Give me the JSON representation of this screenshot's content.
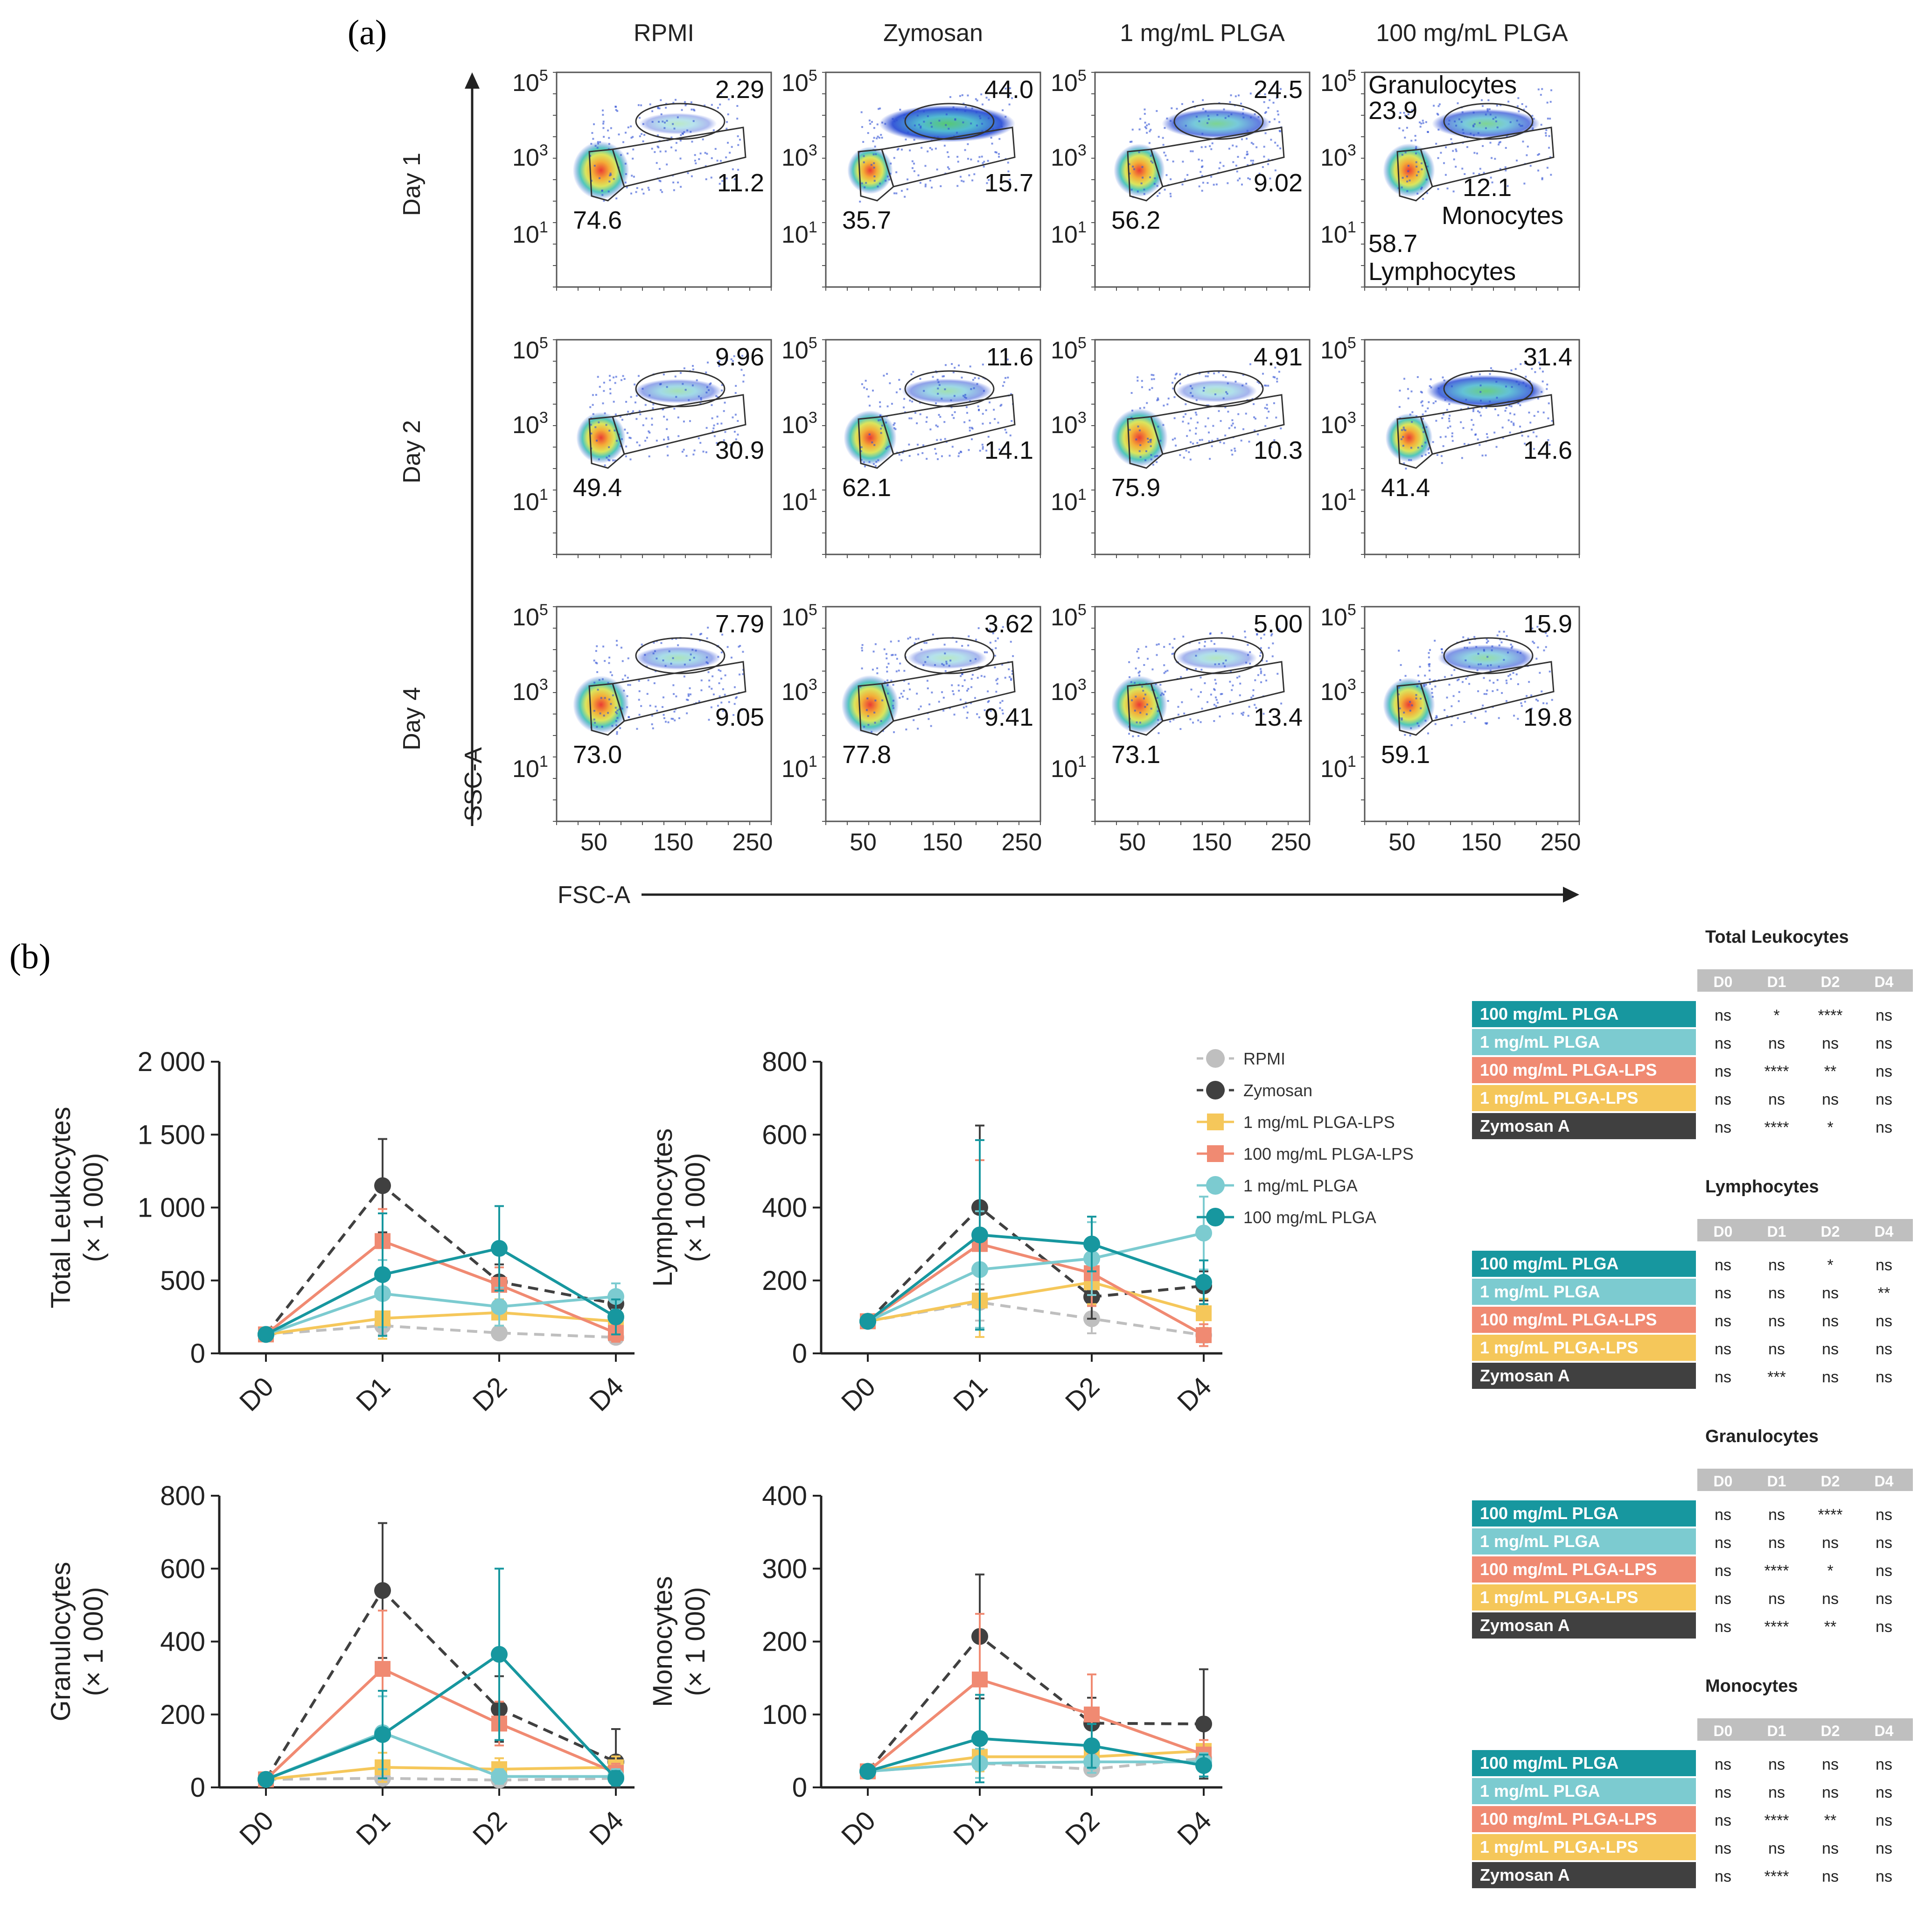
{
  "panel_a": {
    "label": "(a)",
    "columns": [
      "RPMI",
      "Zymosan",
      "1 mg/mL PLGA",
      "100 mg/mL PLGA"
    ],
    "rows": [
      "Day 1",
      "Day 2",
      "Day 4"
    ],
    "x_axis_label": "FSC-A",
    "y_axis_label": "SSC-A",
    "x_ticks": [
      "50",
      "150",
      "250"
    ],
    "y_ticks": [
      {
        "base": "10",
        "exp": "5"
      },
      {
        "base": "10",
        "exp": "3"
      },
      {
        "base": "10",
        "exp": "1"
      }
    ],
    "gate_names": {
      "granulocytes": "Granulocytes",
      "monocytes": "Monocytes",
      "lymphocytes": "Lymphocytes"
    },
    "gate_values": [
      [
        {
          "gran": "2.29",
          "mono": "11.2",
          "lymph": "74.6"
        },
        {
          "gran": "44.0",
          "mono": "15.7",
          "lymph": "35.7"
        },
        {
          "gran": "24.5",
          "mono": "9.02",
          "lymph": "56.2"
        },
        {
          "gran": "23.9",
          "mono": "12.1",
          "lymph": "58.7"
        }
      ],
      [
        {
          "gran": "9.96",
          "mono": "30.9",
          "lymph": "49.4"
        },
        {
          "gran": "11.6",
          "mono": "14.1",
          "lymph": "62.1"
        },
        {
          "gran": "4.91",
          "mono": "10.3",
          "lymph": "75.9"
        },
        {
          "gran": "31.4",
          "mono": "14.6",
          "lymph": "41.4"
        }
      ],
      [
        {
          "gran": "7.79",
          "mono": "9.05",
          "lymph": "73.0"
        },
        {
          "gran": "3.62",
          "mono": "9.41",
          "lymph": "77.8"
        },
        {
          "gran": "5.00",
          "mono": "13.4",
          "lymph": "73.1"
        },
        {
          "gran": "15.9",
          "mono": "19.8",
          "lymph": "59.1"
        }
      ]
    ]
  },
  "panel_b": {
    "label": "(b)",
    "legend": [
      {
        "name": "RPMI",
        "color": "#bfbfbf",
        "marker": "circle",
        "dash": "dashed"
      },
      {
        "name": "Zymosan",
        "color": "#404040",
        "marker": "circle",
        "dash": "dashed"
      },
      {
        "name": "1 mg/mL PLGA-LPS",
        "color": "#f5c75a",
        "marker": "square",
        "dash": "solid"
      },
      {
        "name": "100 mg/mL PLGA-LPS",
        "color": "#f08a72",
        "marker": "square",
        "dash": "solid"
      },
      {
        "name": "1 mg/mL PLGA",
        "color": "#7ccbd0",
        "marker": "circle",
        "dash": "solid"
      },
      {
        "name": "100 mg/mL PLGA",
        "color": "#17979f",
        "marker": "circle",
        "dash": "solid"
      }
    ],
    "stat_tables": [
      {
        "title": "Total Leukocytes",
        "cols": [
          "D0",
          "D1",
          "D2",
          "D4"
        ],
        "rows": [
          {
            "label": "100 mg/mL PLGA",
            "color": "#17979f",
            "values": [
              "ns",
              "*",
              "****",
              "ns"
            ]
          },
          {
            "label": "1 mg/mL PLGA",
            "color": "#7ccbd0",
            "values": [
              "ns",
              "ns",
              "ns",
              "ns"
            ]
          },
          {
            "label": "100 mg/mL PLGA-LPS",
            "color": "#f08a72",
            "values": [
              "ns",
              "****",
              "**",
              "ns"
            ]
          },
          {
            "label": "1 mg/mL PLGA-LPS",
            "color": "#f5c75a",
            "values": [
              "ns",
              "ns",
              "ns",
              "ns"
            ]
          },
          {
            "label": "Zymosan A",
            "color": "#404040",
            "values": [
              "ns",
              "****",
              "*",
              "ns"
            ]
          }
        ]
      },
      {
        "title": "Lymphocytes",
        "cols": [
          "D0",
          "D1",
          "D2",
          "D4"
        ],
        "rows": [
          {
            "label": "100 mg/mL PLGA",
            "color": "#17979f",
            "values": [
              "ns",
              "ns",
              "*",
              "ns"
            ]
          },
          {
            "label": "1 mg/mL PLGA",
            "color": "#7ccbd0",
            "values": [
              "ns",
              "ns",
              "ns",
              "**"
            ]
          },
          {
            "label": "100 mg/mL PLGA-LPS",
            "color": "#f08a72",
            "values": [
              "ns",
              "ns",
              "ns",
              "ns"
            ]
          },
          {
            "label": "1 mg/mL PLGA-LPS",
            "color": "#f5c75a",
            "values": [
              "ns",
              "ns",
              "ns",
              "ns"
            ]
          },
          {
            "label": "Zymosan A",
            "color": "#404040",
            "values": [
              "ns",
              "***",
              "ns",
              "ns"
            ]
          }
        ]
      },
      {
        "title": "Granulocytes",
        "cols": [
          "D0",
          "D1",
          "D2",
          "D4"
        ],
        "rows": [
          {
            "label": "100 mg/mL PLGA",
            "color": "#17979f",
            "values": [
              "ns",
              "ns",
              "****",
              "ns"
            ]
          },
          {
            "label": "1 mg/mL PLGA",
            "color": "#7ccbd0",
            "values": [
              "ns",
              "ns",
              "ns",
              "ns"
            ]
          },
          {
            "label": "100 mg/mL PLGA-LPS",
            "color": "#f08a72",
            "values": [
              "ns",
              "****",
              "*",
              "ns"
            ]
          },
          {
            "label": "1 mg/mL PLGA-LPS",
            "color": "#f5c75a",
            "values": [
              "ns",
              "ns",
              "ns",
              "ns"
            ]
          },
          {
            "label": "Zymosan A",
            "color": "#404040",
            "values": [
              "ns",
              "****",
              "**",
              "ns"
            ]
          }
        ]
      },
      {
        "title": "Monocytes",
        "cols": [
          "D0",
          "D1",
          "D2",
          "D4"
        ],
        "rows": [
          {
            "label": "100 mg/mL PLGA",
            "color": "#17979f",
            "values": [
              "ns",
              "ns",
              "ns",
              "ns"
            ]
          },
          {
            "label": "1 mg/mL PLGA",
            "color": "#7ccbd0",
            "values": [
              "ns",
              "ns",
              "ns",
              "ns"
            ]
          },
          {
            "label": "100 mg/mL PLGA-LPS",
            "color": "#f08a72",
            "values": [
              "ns",
              "****",
              "**",
              "ns"
            ]
          },
          {
            "label": "1 mg/mL PLGA-LPS",
            "color": "#f5c75a",
            "values": [
              "ns",
              "ns",
              "ns",
              "ns"
            ]
          },
          {
            "label": "Zymosan A",
            "color": "#404040",
            "values": [
              "ns",
              "****",
              "ns",
              "ns"
            ]
          }
        ]
      }
    ]
  },
  "chart_data": [
    {
      "type": "line",
      "title": "",
      "ylabel": "Total Leukocytes",
      "ylabel_unit": "(× 1 000)",
      "categories": [
        "D0",
        "D1",
        "D2",
        "D4"
      ],
      "ylim": [
        0,
        2000
      ],
      "yticks": [
        0,
        500,
        1000,
        1500,
        2000
      ],
      "ytick_labels": [
        "0",
        "500",
        "1 000",
        "1 500",
        "2 000"
      ],
      "series": [
        {
          "name": "RPMI",
          "values": [
            130,
            190,
            140,
            110
          ],
          "err": [
            15,
            60,
            40,
            30
          ]
        },
        {
          "name": "Zymosan",
          "values": [
            130,
            1150,
            490,
            340
          ],
          "err": [
            15,
            320,
            120,
            90
          ]
        },
        {
          "name": "1 mg/mL PLGA-LPS",
          "values": [
            130,
            240,
            280,
            220
          ],
          "err": [
            15,
            140,
            90,
            70
          ]
        },
        {
          "name": "100 mg/mL PLGA-LPS",
          "values": [
            130,
            770,
            470,
            140
          ],
          "err": [
            15,
            220,
            120,
            60
          ]
        },
        {
          "name": "1 mg/mL PLGA",
          "values": [
            130,
            410,
            320,
            390
          ],
          "err": [
            15,
            230,
            130,
            90
          ]
        },
        {
          "name": "100 mg/mL PLGA",
          "values": [
            130,
            540,
            720,
            250
          ],
          "err": [
            15,
            420,
            290,
            120
          ]
        }
      ]
    },
    {
      "type": "line",
      "title": "",
      "ylabel": "Lymphocytes",
      "ylabel_unit": "(× 1 000)",
      "categories": [
        "D0",
        "D1",
        "D2",
        "D4"
      ],
      "ylim": [
        0,
        800
      ],
      "yticks": [
        0,
        200,
        400,
        600,
        800
      ],
      "ytick_labels": [
        "0",
        "200",
        "400",
        "600",
        "800"
      ],
      "series": [
        {
          "name": "RPMI",
          "values": [
            88,
            140,
            95,
            50
          ],
          "err": [
            8,
            50,
            40,
            20
          ]
        },
        {
          "name": "Zymosan",
          "values": [
            88,
            400,
            155,
            185
          ],
          "err": [
            8,
            225,
            60,
            40
          ]
        },
        {
          "name": "1 mg/mL PLGA-LPS",
          "values": [
            88,
            145,
            195,
            110
          ],
          "err": [
            8,
            100,
            60,
            40
          ]
        },
        {
          "name": "100 mg/mL PLGA-LPS",
          "values": [
            88,
            300,
            220,
            50
          ],
          "err": [
            8,
            230,
            90,
            30
          ]
        },
        {
          "name": "1 mg/mL PLGA",
          "values": [
            88,
            230,
            260,
            330
          ],
          "err": [
            8,
            160,
            100,
            100
          ]
        },
        {
          "name": "100 mg/mL PLGA",
          "values": [
            88,
            325,
            300,
            195
          ],
          "err": [
            8,
            260,
            75,
            60
          ]
        }
      ]
    },
    {
      "type": "line",
      "title": "",
      "ylabel": "Granulocytes",
      "ylabel_unit": "(× 1 000)",
      "categories": [
        "D0",
        "D1",
        "D2",
        "D4"
      ],
      "ylim": [
        0,
        800
      ],
      "yticks": [
        0,
        200,
        400,
        600,
        800
      ],
      "ytick_labels": [
        "0",
        "200",
        "400",
        "600",
        "800"
      ],
      "series": [
        {
          "name": "RPMI",
          "values": [
            22,
            25,
            20,
            25
          ],
          "err": [
            5,
            10,
            8,
            8
          ]
        },
        {
          "name": "Zymosan",
          "values": [
            22,
            540,
            215,
            70
          ],
          "err": [
            5,
            185,
            90,
            90
          ]
        },
        {
          "name": "1 mg/mL PLGA-LPS",
          "values": [
            22,
            55,
            50,
            55
          ],
          "err": [
            5,
            40,
            30,
            30
          ]
        },
        {
          "name": "100 mg/mL PLGA-LPS",
          "values": [
            22,
            325,
            175,
            40
          ],
          "err": [
            5,
            160,
            60,
            25
          ]
        },
        {
          "name": "1 mg/mL PLGA",
          "values": [
            22,
            150,
            30,
            30
          ],
          "err": [
            5,
            100,
            20,
            20
          ]
        },
        {
          "name": "100 mg/mL PLGA",
          "values": [
            22,
            145,
            365,
            25
          ],
          "err": [
            5,
            120,
            235,
            20
          ]
        }
      ]
    },
    {
      "type": "line",
      "title": "",
      "ylabel": "Monocytes",
      "ylabel_unit": "(× 1 000)",
      "categories": [
        "D0",
        "D1",
        "D2",
        "D4"
      ],
      "ylim": [
        0,
        400
      ],
      "yticks": [
        0,
        100,
        200,
        300,
        400
      ],
      "ytick_labels": [
        "0",
        "100",
        "200",
        "300",
        "400"
      ],
      "series": [
        {
          "name": "RPMI",
          "values": [
            22,
            33,
            25,
            40
          ],
          "err": [
            4,
            10,
            8,
            10
          ]
        },
        {
          "name": "Zymosan",
          "values": [
            22,
            207,
            88,
            87
          ],
          "err": [
            4,
            85,
            35,
            75
          ]
        },
        {
          "name": "1 mg/mL PLGA-LPS",
          "values": [
            22,
            42,
            42,
            50
          ],
          "err": [
            4,
            20,
            15,
            15
          ]
        },
        {
          "name": "100 mg/mL PLGA-LPS",
          "values": [
            22,
            148,
            100,
            45
          ],
          "err": [
            4,
            90,
            55,
            20
          ]
        },
        {
          "name": "1 mg/mL PLGA",
          "values": [
            22,
            33,
            35,
            35
          ],
          "err": [
            4,
            20,
            15,
            12
          ]
        },
        {
          "name": "100 mg/mL PLGA",
          "values": [
            22,
            67,
            57,
            30
          ],
          "err": [
            4,
            60,
            30,
            15
          ]
        }
      ]
    }
  ]
}
